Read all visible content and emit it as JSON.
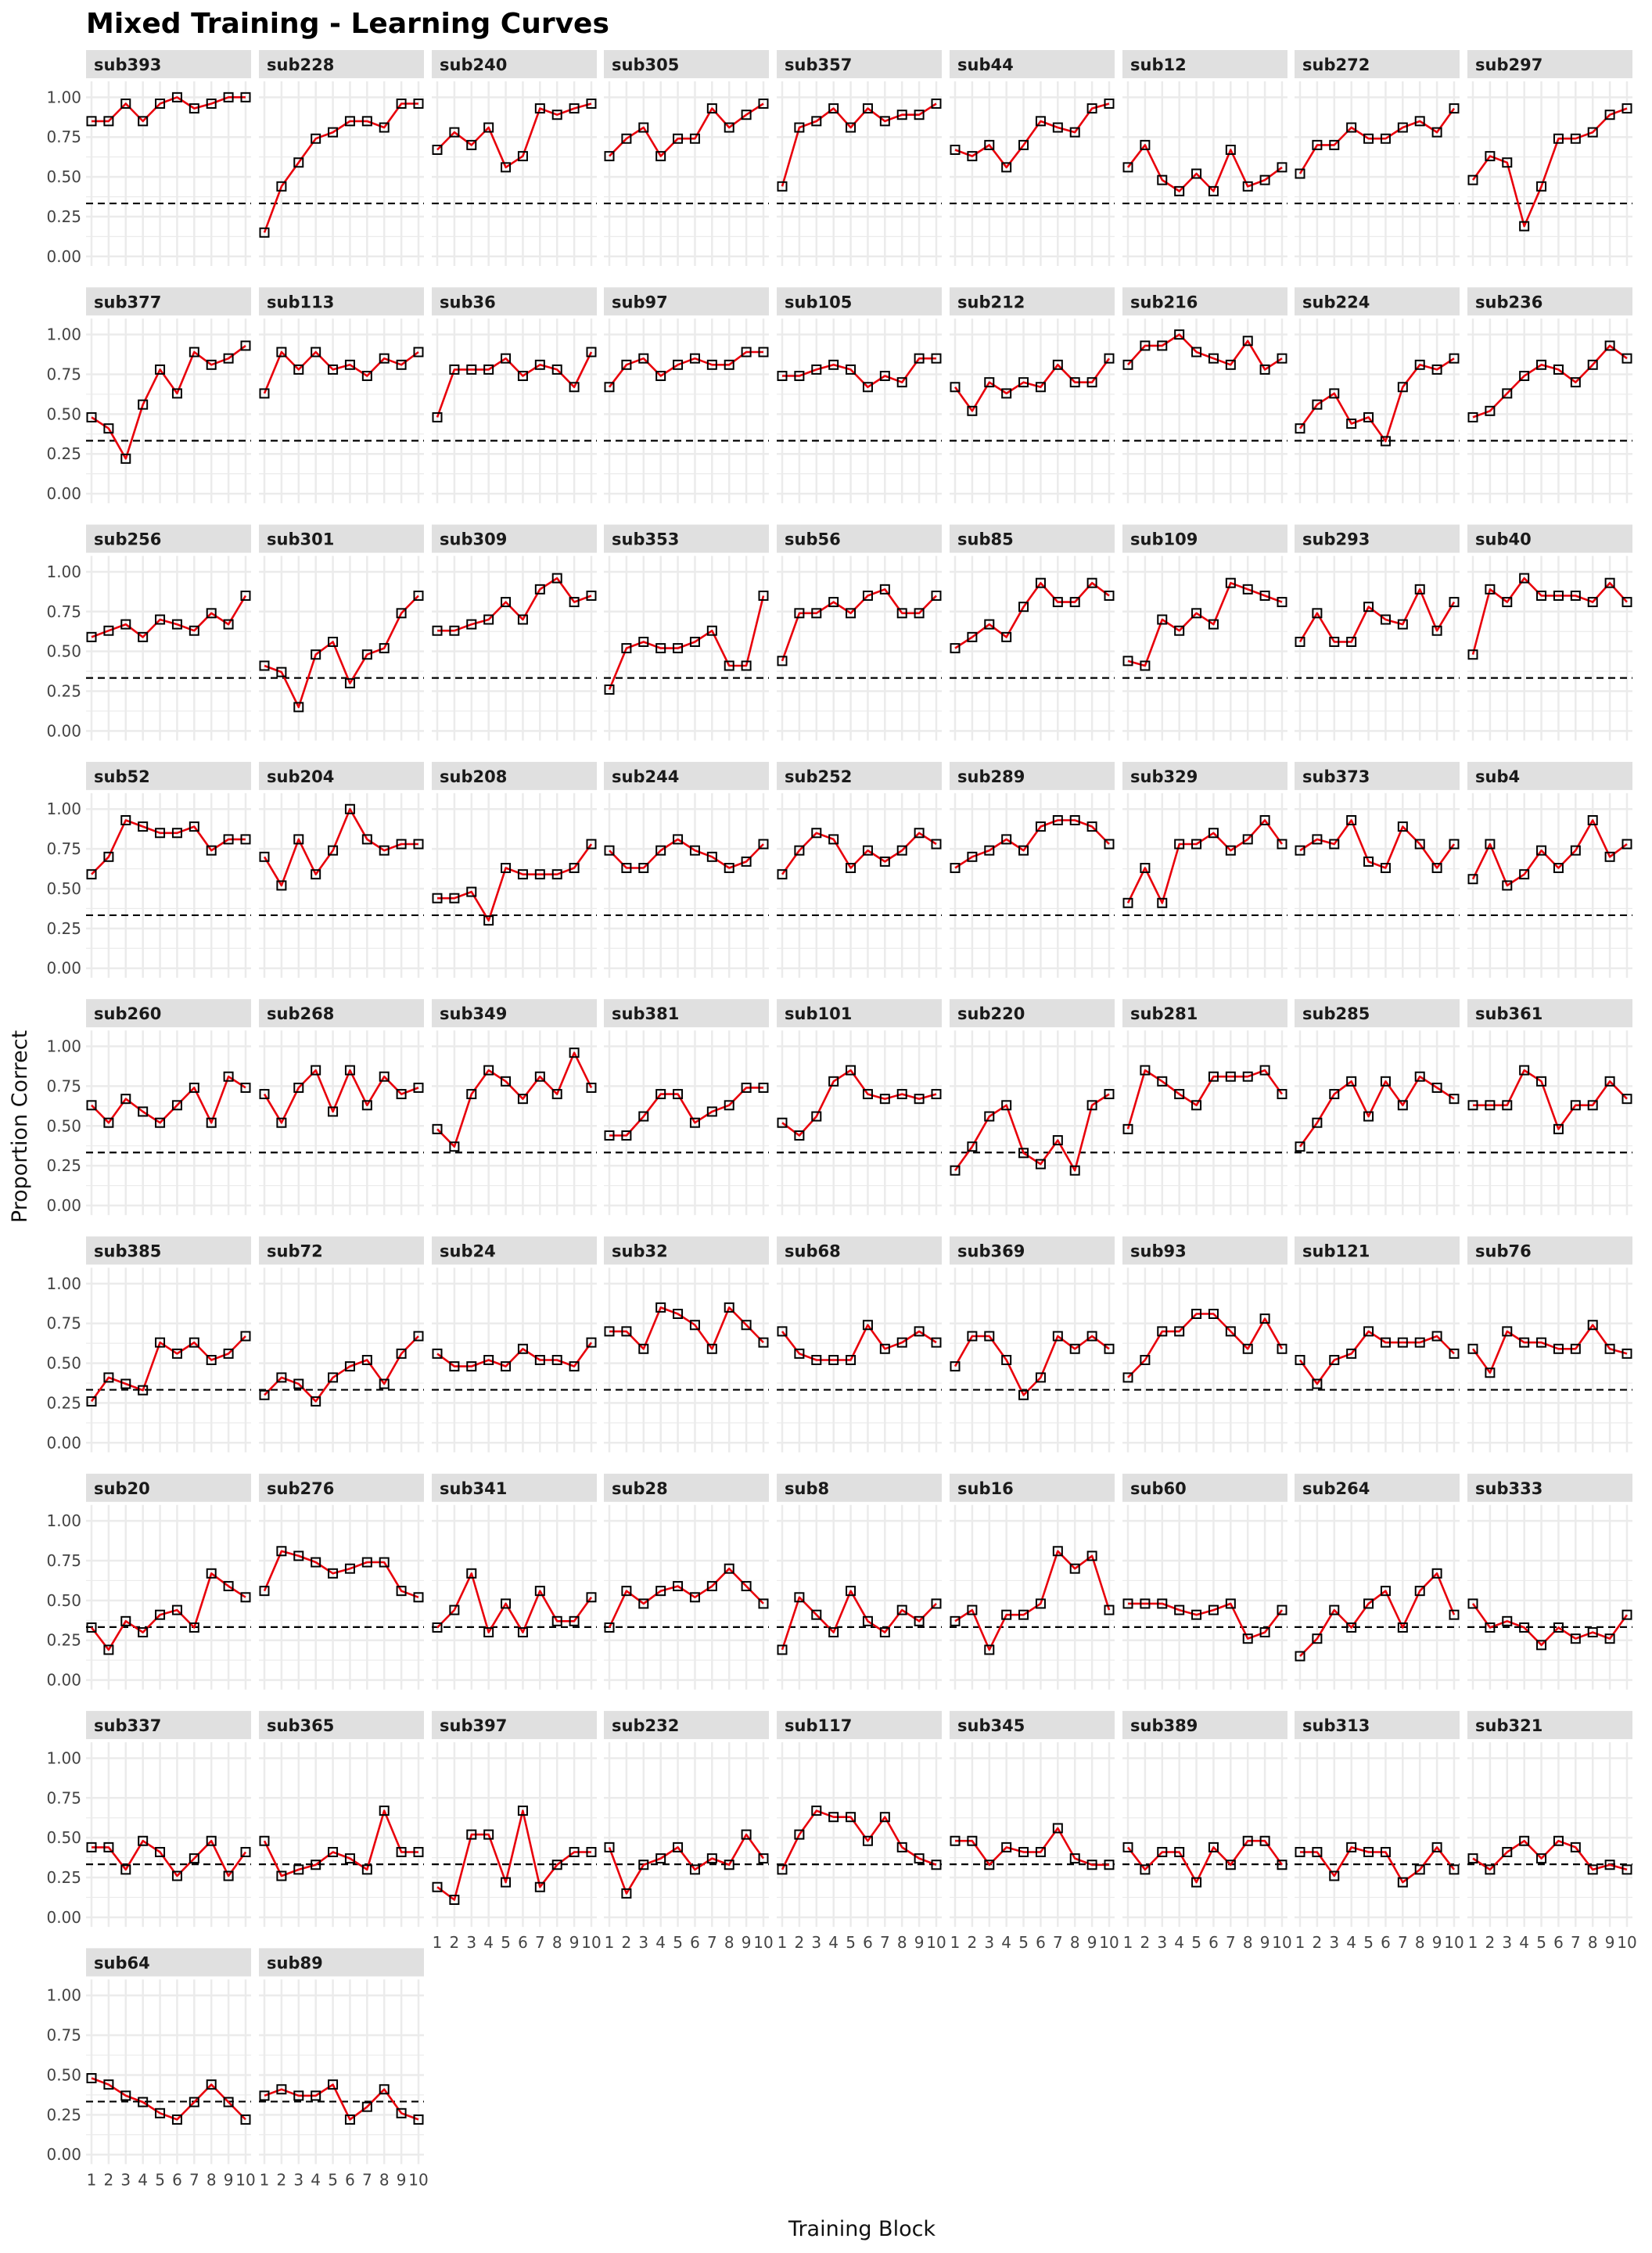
{
  "chart_data": {
    "type": "line",
    "title": "Mixed Training - Learning Curves",
    "xlabel": "Training Block",
    "ylabel": "Proportion Correct",
    "x": [
      1,
      2,
      3,
      4,
      5,
      6,
      7,
      8,
      9,
      10
    ],
    "x_tick_labels": [
      "1",
      "2",
      "3",
      "4",
      "5",
      "6",
      "7",
      "8",
      "9",
      "10"
    ],
    "ylim": [
      0,
      1
    ],
    "y_ticks": [
      0,
      0.25,
      0.5,
      0.75,
      1
    ],
    "y_tick_labels": [
      "0.00",
      "0.25",
      "0.50",
      "0.75",
      "1.00"
    ],
    "reference_line": 0.333,
    "grid": true,
    "colors": {
      "line": "#e8000b",
      "point_stroke": "#000000",
      "reference": "#000000",
      "strip": "#e0e0e0",
      "grid": "#ebebeb"
    },
    "panels": [
      {
        "name": "sub393",
        "values": [
          0.85,
          0.85,
          0.96,
          0.85,
          0.96,
          1.0,
          0.93,
          0.96,
          1.0,
          1.0
        ]
      },
      {
        "name": "sub228",
        "values": [
          0.15,
          0.44,
          0.59,
          0.74,
          0.78,
          0.85,
          0.85,
          0.81,
          0.96,
          0.96
        ]
      },
      {
        "name": "sub240",
        "values": [
          0.67,
          0.78,
          0.7,
          0.81,
          0.56,
          0.63,
          0.93,
          0.89,
          0.93,
          0.96
        ]
      },
      {
        "name": "sub305",
        "values": [
          0.63,
          0.74,
          0.81,
          0.63,
          0.74,
          0.74,
          0.93,
          0.81,
          0.89,
          0.96
        ]
      },
      {
        "name": "sub357",
        "values": [
          0.44,
          0.81,
          0.85,
          0.93,
          0.81,
          0.93,
          0.85,
          0.89,
          0.89,
          0.96
        ]
      },
      {
        "name": "sub44",
        "values": [
          0.67,
          0.63,
          0.7,
          0.56,
          0.7,
          0.85,
          0.81,
          0.78,
          0.93,
          0.96
        ]
      },
      {
        "name": "sub12",
        "values": [
          0.56,
          0.7,
          0.48,
          0.41,
          0.52,
          0.41,
          0.67,
          0.44,
          0.48,
          0.56
        ]
      },
      {
        "name": "sub272",
        "values": [
          0.52,
          0.7,
          0.7,
          0.81,
          0.74,
          0.74,
          0.81,
          0.85,
          0.78,
          0.93
        ]
      },
      {
        "name": "sub297",
        "values": [
          0.48,
          0.63,
          0.59,
          0.19,
          0.44,
          0.74,
          0.74,
          0.78,
          0.89,
          0.93
        ]
      },
      {
        "name": "sub377",
        "values": [
          0.48,
          0.41,
          0.22,
          0.56,
          0.78,
          0.63,
          0.89,
          0.81,
          0.85,
          0.93
        ]
      },
      {
        "name": "sub113",
        "values": [
          0.63,
          0.89,
          0.78,
          0.89,
          0.78,
          0.81,
          0.74,
          0.85,
          0.81,
          0.89
        ]
      },
      {
        "name": "sub36",
        "values": [
          0.48,
          0.78,
          0.78,
          0.78,
          0.85,
          0.74,
          0.81,
          0.78,
          0.67,
          0.89
        ]
      },
      {
        "name": "sub97",
        "values": [
          0.67,
          0.81,
          0.85,
          0.74,
          0.81,
          0.85,
          0.81,
          0.81,
          0.89,
          0.89
        ]
      },
      {
        "name": "sub105",
        "values": [
          0.74,
          0.74,
          0.78,
          0.81,
          0.78,
          0.67,
          0.74,
          0.7,
          0.85,
          0.85
        ]
      },
      {
        "name": "sub212",
        "values": [
          0.67,
          0.52,
          0.7,
          0.63,
          0.7,
          0.67,
          0.81,
          0.7,
          0.7,
          0.85
        ]
      },
      {
        "name": "sub216",
        "values": [
          0.81,
          0.93,
          0.93,
          1.0,
          0.89,
          0.85,
          0.81,
          0.96,
          0.78,
          0.85
        ]
      },
      {
        "name": "sub224",
        "values": [
          0.41,
          0.56,
          0.63,
          0.44,
          0.48,
          0.33,
          0.67,
          0.81,
          0.78,
          0.85
        ]
      },
      {
        "name": "sub236",
        "values": [
          0.48,
          0.52,
          0.63,
          0.74,
          0.81,
          0.78,
          0.7,
          0.81,
          0.93,
          0.85
        ]
      },
      {
        "name": "sub256",
        "values": [
          0.59,
          0.63,
          0.67,
          0.59,
          0.7,
          0.67,
          0.63,
          0.74,
          0.67,
          0.85
        ]
      },
      {
        "name": "sub301",
        "values": [
          0.41,
          0.37,
          0.15,
          0.48,
          0.56,
          0.3,
          0.48,
          0.52,
          0.74,
          0.85
        ]
      },
      {
        "name": "sub309",
        "values": [
          0.63,
          0.63,
          0.67,
          0.7,
          0.81,
          0.7,
          0.89,
          0.96,
          0.81,
          0.85
        ]
      },
      {
        "name": "sub353",
        "values": [
          0.26,
          0.52,
          0.56,
          0.52,
          0.52,
          0.56,
          0.63,
          0.41,
          0.41,
          0.85
        ]
      },
      {
        "name": "sub56",
        "values": [
          0.44,
          0.74,
          0.74,
          0.81,
          0.74,
          0.85,
          0.89,
          0.74,
          0.74,
          0.85
        ]
      },
      {
        "name": "sub85",
        "values": [
          0.52,
          0.59,
          0.67,
          0.59,
          0.78,
          0.93,
          0.81,
          0.81,
          0.93,
          0.85
        ]
      },
      {
        "name": "sub109",
        "values": [
          0.44,
          0.41,
          0.7,
          0.63,
          0.74,
          0.67,
          0.93,
          0.89,
          0.85,
          0.81
        ]
      },
      {
        "name": "sub293",
        "values": [
          0.56,
          0.74,
          0.56,
          0.56,
          0.78,
          0.7,
          0.67,
          0.89,
          0.63,
          0.81
        ]
      },
      {
        "name": "sub40",
        "values": [
          0.48,
          0.89,
          0.81,
          0.96,
          0.85,
          0.85,
          0.85,
          0.81,
          0.93,
          0.81
        ]
      },
      {
        "name": "sub52",
        "values": [
          0.59,
          0.7,
          0.93,
          0.89,
          0.85,
          0.85,
          0.89,
          0.74,
          0.81,
          0.81
        ]
      },
      {
        "name": "sub204",
        "values": [
          0.7,
          0.52,
          0.81,
          0.59,
          0.74,
          1.0,
          0.81,
          0.74,
          0.78,
          0.78
        ]
      },
      {
        "name": "sub208",
        "values": [
          0.44,
          0.44,
          0.48,
          0.3,
          0.63,
          0.59,
          0.59,
          0.59,
          0.63,
          0.78
        ]
      },
      {
        "name": "sub244",
        "values": [
          0.74,
          0.63,
          0.63,
          0.74,
          0.81,
          0.74,
          0.7,
          0.63,
          0.67,
          0.78
        ]
      },
      {
        "name": "sub252",
        "values": [
          0.59,
          0.74,
          0.85,
          0.81,
          0.63,
          0.74,
          0.67,
          0.74,
          0.85,
          0.78
        ]
      },
      {
        "name": "sub289",
        "values": [
          0.63,
          0.7,
          0.74,
          0.81,
          0.74,
          0.89,
          0.93,
          0.93,
          0.89,
          0.78
        ]
      },
      {
        "name": "sub329",
        "values": [
          0.41,
          0.63,
          0.41,
          0.78,
          0.78,
          0.85,
          0.74,
          0.81,
          0.93,
          0.78
        ]
      },
      {
        "name": "sub373",
        "values": [
          0.74,
          0.81,
          0.78,
          0.93,
          0.67,
          0.63,
          0.89,
          0.78,
          0.63,
          0.78
        ]
      },
      {
        "name": "sub4",
        "values": [
          0.56,
          0.78,
          0.52,
          0.59,
          0.74,
          0.63,
          0.74,
          0.93,
          0.7,
          0.78
        ]
      },
      {
        "name": "sub260",
        "values": [
          0.63,
          0.52,
          0.67,
          0.59,
          0.52,
          0.63,
          0.74,
          0.52,
          0.81,
          0.74
        ]
      },
      {
        "name": "sub268",
        "values": [
          0.7,
          0.52,
          0.74,
          0.85,
          0.59,
          0.85,
          0.63,
          0.81,
          0.7,
          0.74
        ]
      },
      {
        "name": "sub349",
        "values": [
          0.48,
          0.37,
          0.7,
          0.85,
          0.78,
          0.67,
          0.81,
          0.7,
          0.96,
          0.74
        ]
      },
      {
        "name": "sub381",
        "values": [
          0.44,
          0.44,
          0.56,
          0.7,
          0.7,
          0.52,
          0.59,
          0.63,
          0.74,
          0.74
        ]
      },
      {
        "name": "sub101",
        "values": [
          0.52,
          0.44,
          0.56,
          0.78,
          0.85,
          0.7,
          0.67,
          0.7,
          0.67,
          0.7
        ]
      },
      {
        "name": "sub220",
        "values": [
          0.22,
          0.37,
          0.56,
          0.63,
          0.33,
          0.26,
          0.41,
          0.22,
          0.63,
          0.7
        ]
      },
      {
        "name": "sub281",
        "values": [
          0.48,
          0.85,
          0.78,
          0.7,
          0.63,
          0.81,
          0.81,
          0.81,
          0.85,
          0.7
        ]
      },
      {
        "name": "sub285",
        "values": [
          0.37,
          0.52,
          0.7,
          0.78,
          0.56,
          0.78,
          0.63,
          0.81,
          0.74,
          0.67
        ]
      },
      {
        "name": "sub361",
        "values": [
          0.63,
          0.63,
          0.63,
          0.85,
          0.78,
          0.48,
          0.63,
          0.63,
          0.78,
          0.67
        ]
      },
      {
        "name": "sub385",
        "values": [
          0.26,
          0.41,
          0.37,
          0.33,
          0.63,
          0.56,
          0.63,
          0.52,
          0.56,
          0.67
        ]
      },
      {
        "name": "sub72",
        "values": [
          0.3,
          0.41,
          0.37,
          0.26,
          0.41,
          0.48,
          0.52,
          0.37,
          0.56,
          0.67
        ]
      },
      {
        "name": "sub24",
        "values": [
          0.56,
          0.48,
          0.48,
          0.52,
          0.48,
          0.59,
          0.52,
          0.52,
          0.48,
          0.63
        ]
      },
      {
        "name": "sub32",
        "values": [
          0.7,
          0.7,
          0.59,
          0.85,
          0.81,
          0.74,
          0.59,
          0.85,
          0.74,
          0.63
        ]
      },
      {
        "name": "sub68",
        "values": [
          0.7,
          0.56,
          0.52,
          0.52,
          0.52,
          0.74,
          0.59,
          0.63,
          0.7,
          0.63
        ]
      },
      {
        "name": "sub369",
        "values": [
          0.48,
          0.67,
          0.67,
          0.52,
          0.3,
          0.41,
          0.67,
          0.59,
          0.67,
          0.59
        ]
      },
      {
        "name": "sub93",
        "values": [
          0.41,
          0.52,
          0.7,
          0.7,
          0.81,
          0.81,
          0.7,
          0.59,
          0.78,
          0.59
        ]
      },
      {
        "name": "sub121",
        "values": [
          0.52,
          0.37,
          0.52,
          0.56,
          0.7,
          0.63,
          0.63,
          0.63,
          0.67,
          0.56
        ]
      },
      {
        "name": "sub76",
        "values": [
          0.59,
          0.44,
          0.7,
          0.63,
          0.63,
          0.59,
          0.59,
          0.74,
          0.59,
          0.56
        ]
      },
      {
        "name": "sub20",
        "values": [
          0.33,
          0.19,
          0.37,
          0.3,
          0.41,
          0.44,
          0.33,
          0.67,
          0.59,
          0.52
        ]
      },
      {
        "name": "sub276",
        "values": [
          0.56,
          0.81,
          0.78,
          0.74,
          0.67,
          0.7,
          0.74,
          0.74,
          0.56,
          0.52
        ]
      },
      {
        "name": "sub341",
        "values": [
          0.33,
          0.44,
          0.67,
          0.3,
          0.48,
          0.3,
          0.56,
          0.37,
          0.37,
          0.52
        ]
      },
      {
        "name": "sub28",
        "values": [
          0.33,
          0.56,
          0.48,
          0.56,
          0.59,
          0.52,
          0.59,
          0.7,
          0.59,
          0.48
        ]
      },
      {
        "name": "sub8",
        "values": [
          0.19,
          0.52,
          0.41,
          0.3,
          0.56,
          0.37,
          0.3,
          0.44,
          0.37,
          0.48
        ]
      },
      {
        "name": "sub16",
        "values": [
          0.37,
          0.44,
          0.19,
          0.41,
          0.41,
          0.48,
          0.81,
          0.7,
          0.78,
          0.44
        ]
      },
      {
        "name": "sub60",
        "values": [
          0.48,
          0.48,
          0.48,
          0.44,
          0.41,
          0.44,
          0.48,
          0.26,
          0.3,
          0.44
        ]
      },
      {
        "name": "sub264",
        "values": [
          0.15,
          0.26,
          0.44,
          0.33,
          0.48,
          0.56,
          0.33,
          0.56,
          0.67,
          0.41
        ]
      },
      {
        "name": "sub333",
        "values": [
          0.48,
          0.33,
          0.37,
          0.33,
          0.22,
          0.33,
          0.26,
          0.3,
          0.26,
          0.41
        ]
      },
      {
        "name": "sub337",
        "values": [
          0.44,
          0.44,
          0.3,
          0.48,
          0.41,
          0.26,
          0.37,
          0.48,
          0.26,
          0.41
        ]
      },
      {
        "name": "sub365",
        "values": [
          0.48,
          0.26,
          0.3,
          0.33,
          0.41,
          0.37,
          0.3,
          0.67,
          0.41,
          0.41
        ]
      },
      {
        "name": "sub397",
        "values": [
          0.19,
          0.11,
          0.52,
          0.52,
          0.22,
          0.67,
          0.19,
          0.33,
          0.41,
          0.41
        ]
      },
      {
        "name": "sub232",
        "values": [
          0.44,
          0.15,
          0.33,
          0.37,
          0.44,
          0.3,
          0.37,
          0.33,
          0.52,
          0.37
        ]
      },
      {
        "name": "sub117",
        "values": [
          0.3,
          0.52,
          0.67,
          0.63,
          0.63,
          0.48,
          0.63,
          0.44,
          0.37,
          0.33
        ]
      },
      {
        "name": "sub345",
        "values": [
          0.48,
          0.48,
          0.33,
          0.44,
          0.41,
          0.41,
          0.56,
          0.37,
          0.33,
          0.33
        ]
      },
      {
        "name": "sub389",
        "values": [
          0.44,
          0.3,
          0.41,
          0.41,
          0.22,
          0.44,
          0.33,
          0.48,
          0.48,
          0.33
        ]
      },
      {
        "name": "sub313",
        "values": [
          0.41,
          0.41,
          0.26,
          0.44,
          0.41,
          0.41,
          0.22,
          0.3,
          0.44,
          0.3
        ]
      },
      {
        "name": "sub321",
        "values": [
          0.37,
          0.3,
          0.41,
          0.48,
          0.37,
          0.48,
          0.44,
          0.3,
          0.33,
          0.3
        ]
      },
      {
        "name": "sub64",
        "values": [
          0.48,
          0.44,
          0.37,
          0.33,
          0.26,
          0.22,
          0.33,
          0.44,
          0.33,
          0.22
        ]
      },
      {
        "name": "sub89",
        "values": [
          0.37,
          0.41,
          0.37,
          0.37,
          0.44,
          0.22,
          0.3,
          0.41,
          0.26,
          0.22
        ]
      }
    ]
  }
}
